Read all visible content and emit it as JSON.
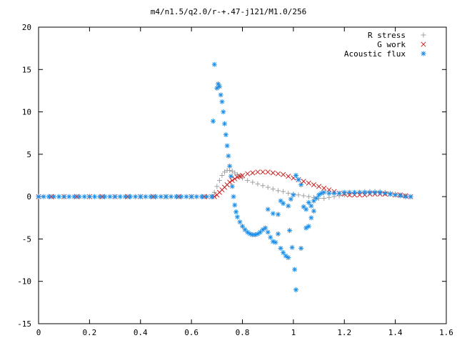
{
  "chart_data": {
    "type": "scatter",
    "title": "m4/n1.5/q2.0/r-+.47-j121/M1.0/256",
    "xlabel": "",
    "ylabel": "",
    "xlim": [
      0,
      1.6
    ],
    "ylim": [
      -15,
      20
    ],
    "x_ticks": [
      "0",
      "0.2",
      "0.4",
      "0.6",
      "0.8",
      "1",
      "1.2",
      "1.4",
      "1.6"
    ],
    "y_ticks": [
      "-15",
      "-10",
      "-5",
      "0",
      "5",
      "10",
      "15",
      "20"
    ],
    "grid": false,
    "legend_position": "top-right",
    "series": [
      {
        "name": "R stress",
        "marker": "plus",
        "color": "#a0a0a0",
        "points": [
          [
            0,
            0
          ],
          [
            0.05,
            0
          ],
          [
            0.1,
            0
          ],
          [
            0.15,
            0
          ],
          [
            0.2,
            0
          ],
          [
            0.25,
            0
          ],
          [
            0.3,
            0
          ],
          [
            0.35,
            0
          ],
          [
            0.4,
            0
          ],
          [
            0.45,
            0
          ],
          [
            0.5,
            0
          ],
          [
            0.55,
            0
          ],
          [
            0.6,
            0
          ],
          [
            0.65,
            0
          ],
          [
            0.68,
            0
          ],
          [
            0.69,
            0.5
          ],
          [
            0.7,
            1.2
          ],
          [
            0.71,
            1.9
          ],
          [
            0.72,
            2.5
          ],
          [
            0.73,
            2.9
          ],
          [
            0.74,
            3.1
          ],
          [
            0.75,
            3.1
          ],
          [
            0.76,
            3.0
          ],
          [
            0.77,
            2.8
          ],
          [
            0.78,
            2.6
          ],
          [
            0.79,
            2.4
          ],
          [
            0.8,
            2.2
          ],
          [
            0.82,
            1.9
          ],
          [
            0.84,
            1.7
          ],
          [
            0.86,
            1.5
          ],
          [
            0.88,
            1.3
          ],
          [
            0.9,
            1.1
          ],
          [
            0.92,
            0.9
          ],
          [
            0.94,
            0.7
          ],
          [
            0.96,
            0.6
          ],
          [
            0.98,
            0.4
          ],
          [
            1.0,
            0.3
          ],
          [
            1.02,
            0.2
          ],
          [
            1.04,
            0.1
          ],
          [
            1.06,
            0.0
          ],
          [
            1.08,
            -0.1
          ],
          [
            1.1,
            -0.2
          ],
          [
            1.12,
            -0.2
          ],
          [
            1.14,
            -0.1
          ],
          [
            1.16,
            0.0
          ],
          [
            1.18,
            0.1
          ],
          [
            1.2,
            0.2
          ],
          [
            1.22,
            0.3
          ],
          [
            1.24,
            0.4
          ],
          [
            1.26,
            0.5
          ],
          [
            1.28,
            0.6
          ],
          [
            1.3,
            0.6
          ],
          [
            1.32,
            0.6
          ],
          [
            1.34,
            0.6
          ],
          [
            1.36,
            0.5
          ],
          [
            1.38,
            0.4
          ],
          [
            1.4,
            0.3
          ],
          [
            1.42,
            0.2
          ],
          [
            1.44,
            0.1
          ],
          [
            1.46,
            0.0
          ]
        ]
      },
      {
        "name": "G work",
        "marker": "cross",
        "color": "#cc2222",
        "points": [
          [
            0,
            0
          ],
          [
            0.05,
            0
          ],
          [
            0.1,
            0
          ],
          [
            0.15,
            0
          ],
          [
            0.2,
            0
          ],
          [
            0.25,
            0
          ],
          [
            0.3,
            0
          ],
          [
            0.35,
            0
          ],
          [
            0.4,
            0
          ],
          [
            0.45,
            0
          ],
          [
            0.5,
            0
          ],
          [
            0.55,
            0
          ],
          [
            0.6,
            0
          ],
          [
            0.65,
            0
          ],
          [
            0.68,
            0
          ],
          [
            0.69,
            0.0
          ],
          [
            0.7,
            0.2
          ],
          [
            0.71,
            0.5
          ],
          [
            0.72,
            0.8
          ],
          [
            0.73,
            1.1
          ],
          [
            0.74,
            1.4
          ],
          [
            0.75,
            1.7
          ],
          [
            0.76,
            1.9
          ],
          [
            0.77,
            2.1
          ],
          [
            0.78,
            2.3
          ],
          [
            0.79,
            2.4
          ],
          [
            0.8,
            2.5
          ],
          [
            0.82,
            2.7
          ],
          [
            0.84,
            2.8
          ],
          [
            0.86,
            2.9
          ],
          [
            0.88,
            2.9
          ],
          [
            0.9,
            2.9
          ],
          [
            0.92,
            2.8
          ],
          [
            0.94,
            2.7
          ],
          [
            0.96,
            2.6
          ],
          [
            0.98,
            2.4
          ],
          [
            1.0,
            2.2
          ],
          [
            1.02,
            2.0
          ],
          [
            1.04,
            1.8
          ],
          [
            1.06,
            1.6
          ],
          [
            1.08,
            1.4
          ],
          [
            1.1,
            1.2
          ],
          [
            1.12,
            1.0
          ],
          [
            1.14,
            0.8
          ],
          [
            1.16,
            0.6
          ],
          [
            1.18,
            0.4
          ],
          [
            1.2,
            0.3
          ],
          [
            1.22,
            0.2
          ],
          [
            1.24,
            0.2
          ],
          [
            1.26,
            0.2
          ],
          [
            1.28,
            0.2
          ],
          [
            1.3,
            0.3
          ],
          [
            1.32,
            0.3
          ],
          [
            1.34,
            0.3
          ],
          [
            1.36,
            0.3
          ],
          [
            1.38,
            0.3
          ],
          [
            1.4,
            0.2
          ],
          [
            1.42,
            0.2
          ],
          [
            1.44,
            0.1
          ],
          [
            1.46,
            0.0
          ]
        ]
      },
      {
        "name": "Acoustic flux",
        "marker": "star",
        "color": "#1e8ee8",
        "points": [
          [
            0,
            0
          ],
          [
            0.02,
            0
          ],
          [
            0.04,
            0
          ],
          [
            0.06,
            0
          ],
          [
            0.08,
            0
          ],
          [
            0.1,
            0
          ],
          [
            0.12,
            0
          ],
          [
            0.14,
            0
          ],
          [
            0.16,
            0
          ],
          [
            0.18,
            0
          ],
          [
            0.2,
            0
          ],
          [
            0.22,
            0
          ],
          [
            0.24,
            0
          ],
          [
            0.26,
            0
          ],
          [
            0.28,
            0
          ],
          [
            0.3,
            0
          ],
          [
            0.32,
            0
          ],
          [
            0.34,
            0
          ],
          [
            0.36,
            0
          ],
          [
            0.38,
            0
          ],
          [
            0.4,
            0
          ],
          [
            0.42,
            0
          ],
          [
            0.44,
            0
          ],
          [
            0.46,
            0
          ],
          [
            0.48,
            0
          ],
          [
            0.5,
            0
          ],
          [
            0.52,
            0
          ],
          [
            0.54,
            0
          ],
          [
            0.56,
            0
          ],
          [
            0.58,
            0
          ],
          [
            0.6,
            0
          ],
          [
            0.62,
            0
          ],
          [
            0.64,
            0
          ],
          [
            0.66,
            0
          ],
          [
            0.68,
            0
          ],
          [
            0.685,
            8.9
          ],
          [
            0.69,
            15.6
          ],
          [
            0.7,
            12.8
          ],
          [
            0.705,
            13.3
          ],
          [
            0.71,
            13.0
          ],
          [
            0.715,
            12.0
          ],
          [
            0.72,
            11.2
          ],
          [
            0.725,
            10.0
          ],
          [
            0.73,
            8.6
          ],
          [
            0.735,
            7.3
          ],
          [
            0.74,
            6.0
          ],
          [
            0.745,
            4.8
          ],
          [
            0.75,
            3.6
          ],
          [
            0.755,
            2.4
          ],
          [
            0.76,
            1.2
          ],
          [
            0.765,
            0.0
          ],
          [
            0.77,
            -1.0
          ],
          [
            0.775,
            -1.8
          ],
          [
            0.78,
            -2.4
          ],
          [
            0.79,
            -3.0
          ],
          [
            0.8,
            -3.5
          ],
          [
            0.81,
            -3.9
          ],
          [
            0.82,
            -4.2
          ],
          [
            0.83,
            -4.4
          ],
          [
            0.84,
            -4.5
          ],
          [
            0.85,
            -4.5
          ],
          [
            0.86,
            -4.4
          ],
          [
            0.87,
            -4.2
          ],
          [
            0.88,
            -3.9
          ],
          [
            0.89,
            -3.7
          ],
          [
            0.9,
            -4.2
          ],
          [
            0.91,
            -4.8
          ],
          [
            0.92,
            -5.3
          ],
          [
            0.93,
            -5.4
          ],
          [
            0.94,
            -4.4
          ],
          [
            0.95,
            -6.1
          ],
          [
            0.96,
            -6.6
          ],
          [
            0.97,
            -7.0
          ],
          [
            0.98,
            -7.2
          ],
          [
            0.9,
            -1.5
          ],
          [
            0.92,
            -2.0
          ],
          [
            0.94,
            -2.1
          ],
          [
            0.95,
            -0.5
          ],
          [
            0.96,
            -0.8
          ],
          [
            0.98,
            -1.1
          ],
          [
            0.99,
            -0.3
          ],
          [
            1.0,
            0.2
          ],
          [
            1.01,
            2.5
          ],
          [
            1.02,
            2.0
          ],
          [
            1.03,
            1.4
          ],
          [
            1.04,
            -1.2
          ],
          [
            1.05,
            -1.5
          ],
          [
            1.06,
            -0.7
          ],
          [
            1.07,
            -1.1
          ],
          [
            1.08,
            -0.5
          ],
          [
            1.09,
            -0.2
          ],
          [
            1.1,
            0.2
          ],
          [
            1.11,
            0.4
          ],
          [
            1.12,
            0.5
          ],
          [
            0.985,
            -4.0
          ],
          [
            0.995,
            -6.0
          ],
          [
            1.005,
            -8.6
          ],
          [
            1.01,
            -11.0
          ],
          [
            1.03,
            -6.1
          ],
          [
            1.05,
            -3.7
          ],
          [
            1.06,
            -3.5
          ],
          [
            1.07,
            -2.5
          ],
          [
            1.08,
            -1.7
          ],
          [
            1.14,
            0.4
          ],
          [
            1.16,
            0.4
          ],
          [
            1.18,
            0.4
          ],
          [
            1.2,
            0.5
          ],
          [
            1.22,
            0.5
          ],
          [
            1.24,
            0.5
          ],
          [
            1.26,
            0.5
          ],
          [
            1.28,
            0.5
          ],
          [
            1.3,
            0.5
          ],
          [
            1.32,
            0.5
          ],
          [
            1.34,
            0.5
          ],
          [
            1.36,
            0.4
          ],
          [
            1.38,
            0.3
          ],
          [
            1.4,
            0.2
          ],
          [
            1.42,
            0.1
          ],
          [
            1.44,
            0.0
          ],
          [
            1.46,
            0.0
          ]
        ]
      }
    ]
  }
}
